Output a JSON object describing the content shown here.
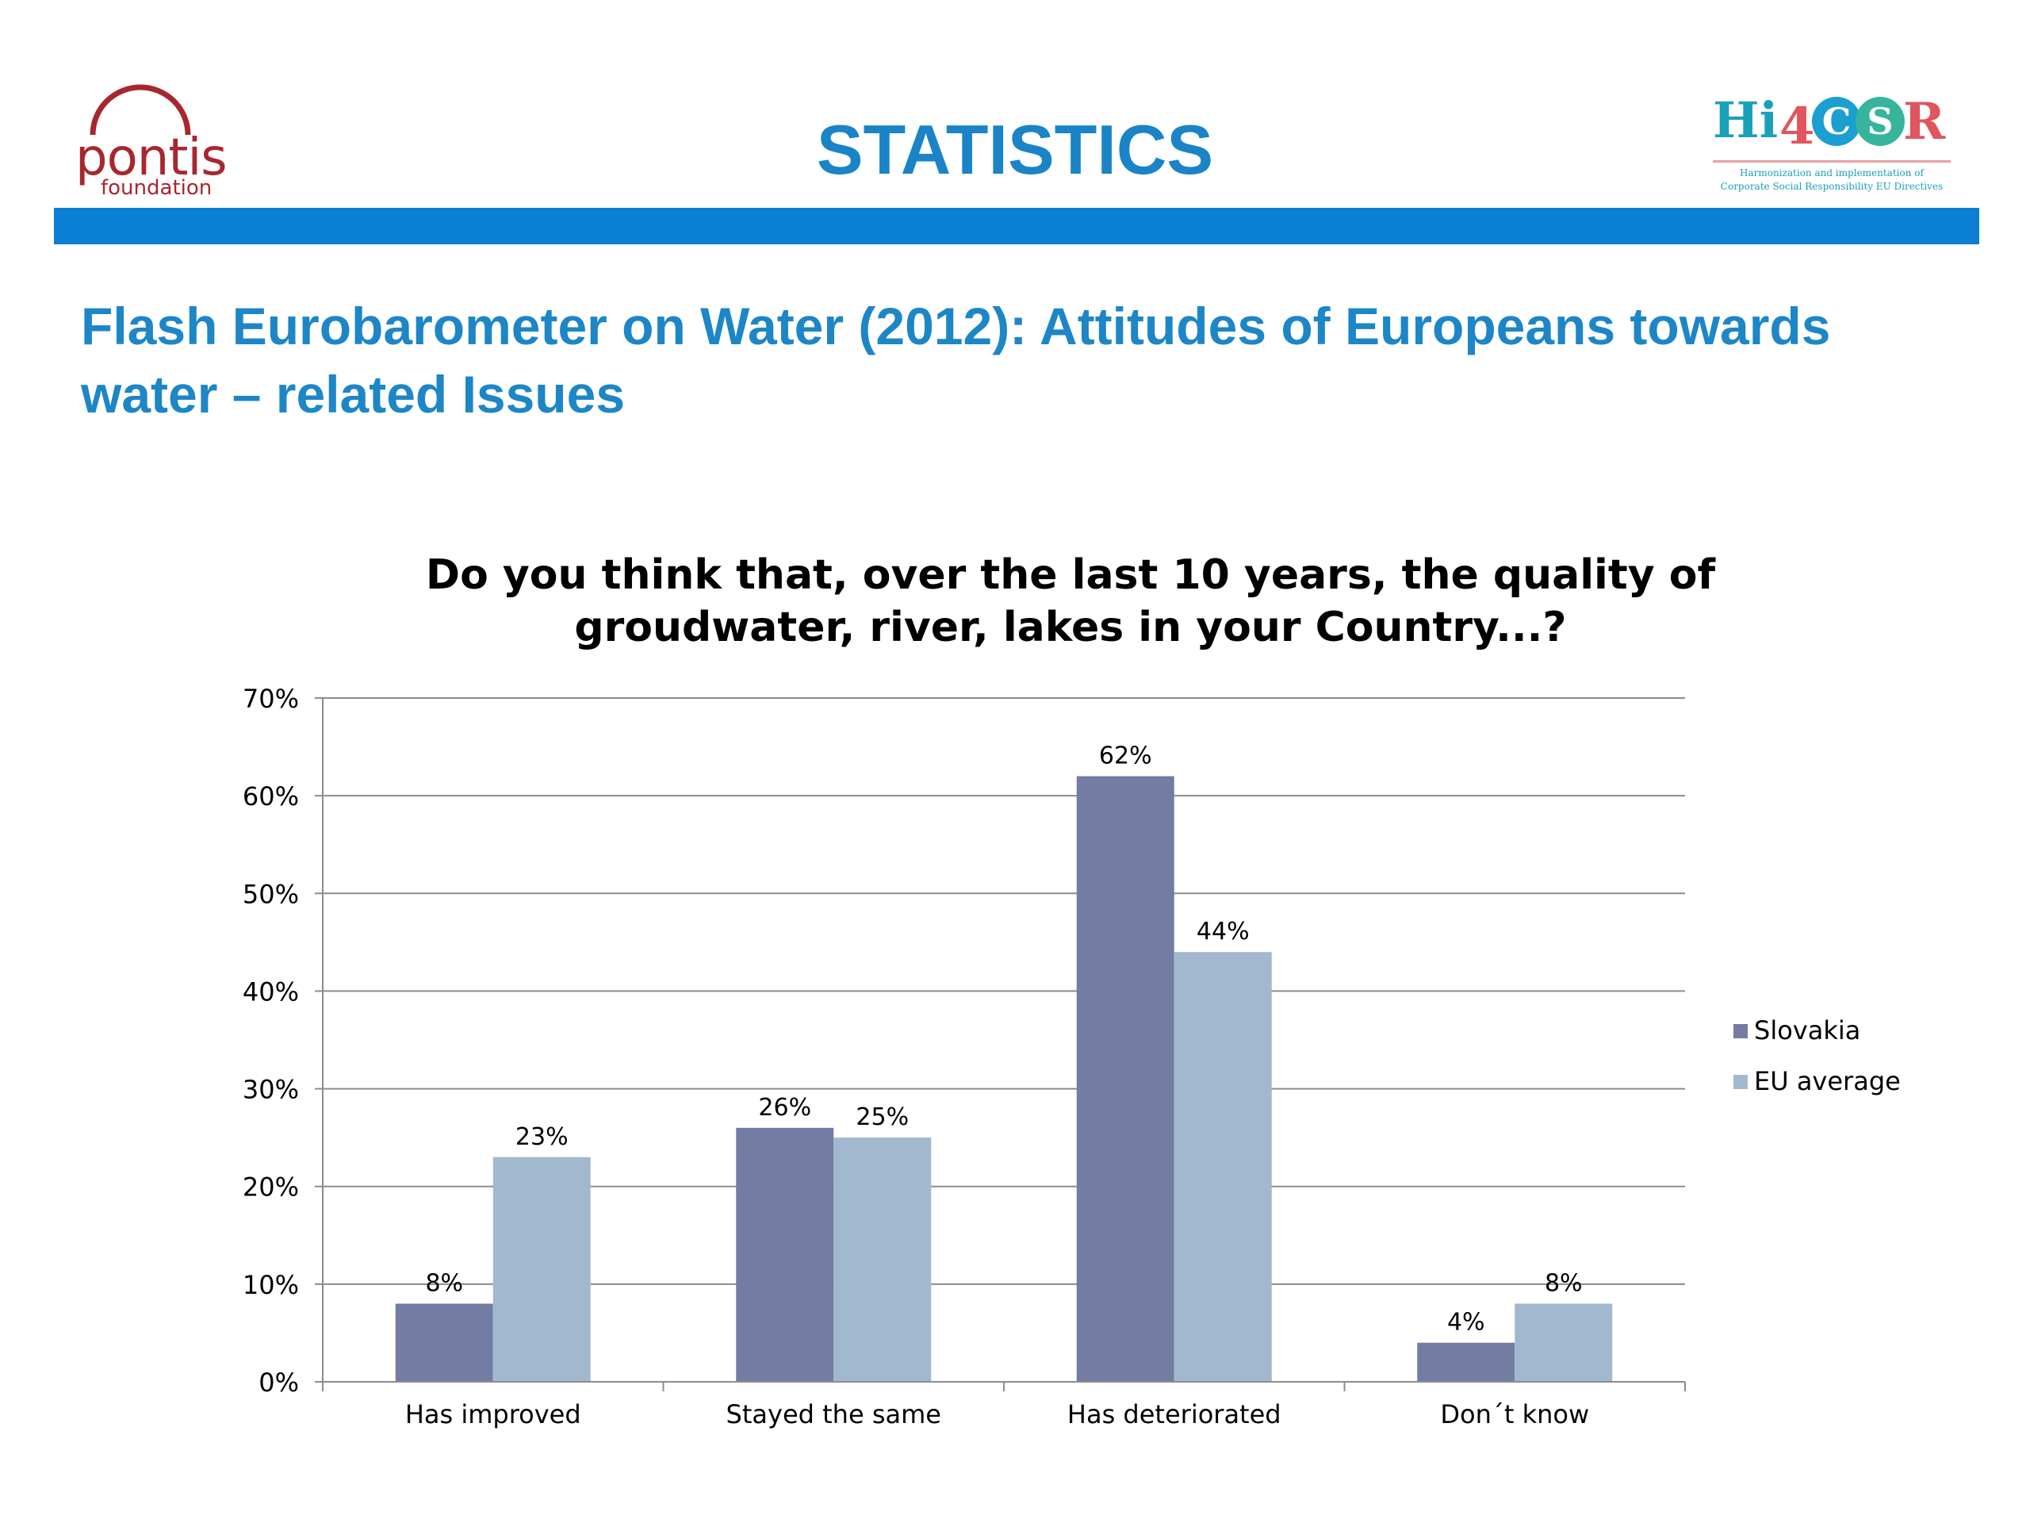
{
  "header": {
    "title": "STATISTICS",
    "left_logo": {
      "name": "pontis",
      "sub": "foundation",
      "color": "#a8272e"
    },
    "right_logo": {
      "letters": [
        "Hi",
        "4",
        "C",
        "S",
        "R"
      ],
      "tagline_1": "Harmonization and implementation of",
      "tagline_2": "Corporate Social Responsibility EU Directives"
    },
    "bar_color": "#0b7fd4"
  },
  "subtitle": "Flash Eurobarometer on Water (2012): Attitudes of Europeans towards water – related Issues",
  "chart_data": {
    "type": "bar",
    "title_line1": "Do you think that, over the last 10 years, the quality of",
    "title_line2": "groudwater, river, lakes in your Country...?",
    "categories": [
      "Has improved",
      "Stayed the same",
      "Has deteriorated",
      "Don´t know"
    ],
    "series": [
      {
        "name": "Slovakia",
        "values": [
          8,
          26,
          62,
          4
        ],
        "color": "#737ca3"
      },
      {
        "name": "EU average",
        "values": [
          23,
          25,
          44,
          8
        ],
        "color": "#a2b8cf"
      }
    ],
    "ylim": [
      0,
      70
    ],
    "yticks": [
      0,
      10,
      20,
      30,
      40,
      50,
      60,
      70
    ],
    "ytick_labels": [
      "0%",
      "10%",
      "20%",
      "30%",
      "40%",
      "50%",
      "60%",
      "70%"
    ],
    "value_suffix": "%",
    "grid": true,
    "legend_position": "right"
  }
}
